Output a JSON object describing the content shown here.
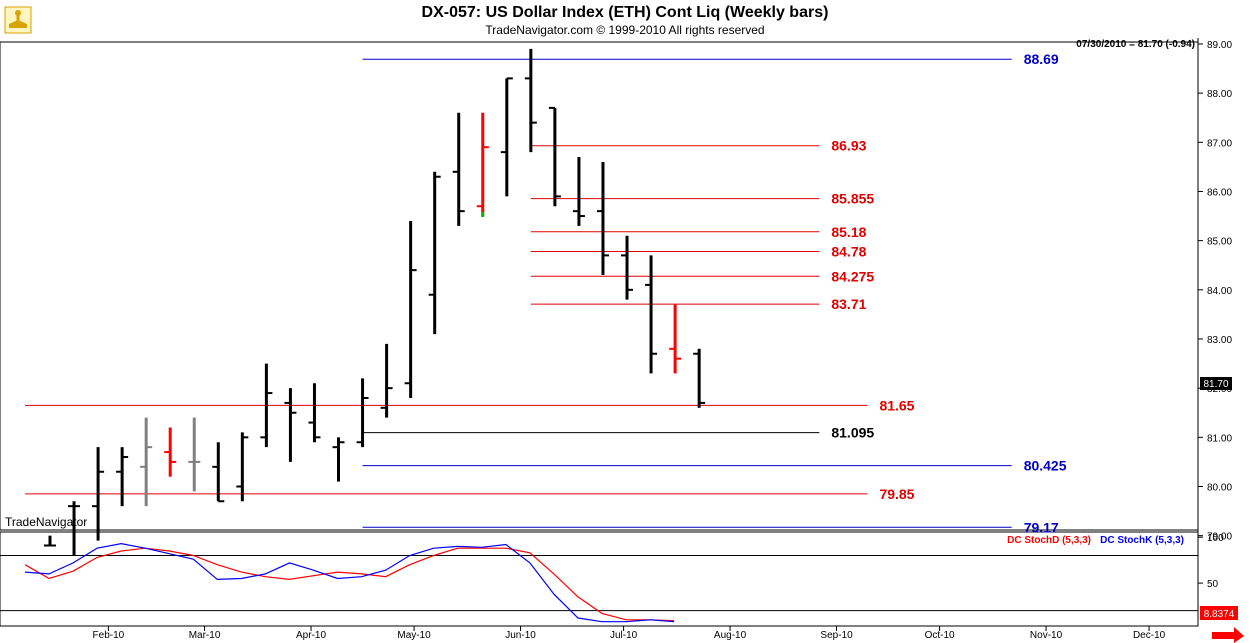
{
  "header": {
    "title": "DX-057:  US Dollar Index (ETH) Cont Liq  (Weekly bars)",
    "subtitle": "TradeNavigator.com © 1999-2010 All rights reserved",
    "last_quote": "07/30/2010 = 81.70 (-0.94)",
    "watermark": "TradeNavigator"
  },
  "colors": {
    "bar": "#000000",
    "bar_gray": "#808080",
    "bar_red": "#ff0000",
    "level_red": "#e00000",
    "level_blue": "#0000c8",
    "level_black": "#000000",
    "stoch_d": "#ff0000",
    "stoch_k": "#0000ff",
    "logo_gold": "#d9a400"
  },
  "icons": {
    "logo": "trade-navigator-logo-icon",
    "scroll": "scroll-right-arrow-icon"
  },
  "chart_data": [
    {
      "type": "ohlc",
      "interval": "weekly",
      "ylim": [
        78.8,
        89.05
      ],
      "yticks": [
        79.0,
        80.0,
        81.0,
        82.0,
        83.0,
        84.0,
        85.0,
        86.0,
        87.0,
        88.0,
        89.0
      ],
      "last_price_label": "81.70",
      "months": [
        "Feb-10",
        "Mar-10",
        "Apr-10",
        "May-10",
        "Jun-10",
        "Jul-10",
        "Aug-10",
        "Sep-10",
        "Oct-10",
        "Nov-10",
        "Dec-10"
      ],
      "bars": [
        {
          "date": "2010-01-15",
          "open": 78.8,
          "high": 79.0,
          "low": 78.8,
          "close": 78.8,
          "color": "black"
        },
        {
          "date": "2010-01-22",
          "open": 79.6,
          "high": 79.7,
          "low": 78.6,
          "close": 79.6,
          "color": "black"
        },
        {
          "date": "2010-01-29",
          "open": 79.6,
          "high": 80.8,
          "low": 78.9,
          "close": 80.3,
          "color": "black"
        },
        {
          "date": "2010-02-05",
          "open": 80.3,
          "high": 80.8,
          "low": 79.6,
          "close": 80.6,
          "color": "black"
        },
        {
          "date": "2010-02-12",
          "open": 80.4,
          "high": 81.4,
          "low": 79.6,
          "close": 80.8,
          "color": "gray"
        },
        {
          "date": "2010-02-19",
          "open": 80.7,
          "high": 81.2,
          "low": 80.2,
          "close": 80.5,
          "color": "red"
        },
        {
          "date": "2010-02-26",
          "open": 80.5,
          "high": 81.4,
          "low": 79.9,
          "close": 80.5,
          "color": "gray"
        },
        {
          "date": "2010-03-05",
          "open": 80.4,
          "high": 80.9,
          "low": 79.7,
          "close": 79.7,
          "color": "black"
        },
        {
          "date": "2010-03-12",
          "open": 80.0,
          "high": 81.1,
          "low": 79.7,
          "close": 81.0,
          "color": "black"
        },
        {
          "date": "2010-03-19",
          "open": 81.0,
          "high": 82.5,
          "low": 80.8,
          "close": 81.9,
          "color": "black"
        },
        {
          "date": "2010-03-26",
          "open": 81.7,
          "high": 82.0,
          "low": 80.5,
          "close": 81.5,
          "color": "black"
        },
        {
          "date": "2010-04-02",
          "open": 81.3,
          "high": 82.1,
          "low": 80.9,
          "close": 81.0,
          "color": "black"
        },
        {
          "date": "2010-04-09",
          "open": 80.8,
          "high": 81.0,
          "low": 80.1,
          "close": 80.9,
          "color": "black"
        },
        {
          "date": "2010-04-16",
          "open": 80.9,
          "high": 82.2,
          "low": 80.8,
          "close": 81.8,
          "color": "black"
        },
        {
          "date": "2010-04-23",
          "open": 81.6,
          "high": 82.9,
          "low": 81.4,
          "close": 82.0,
          "color": "black"
        },
        {
          "date": "2010-04-30",
          "open": 82.1,
          "high": 85.4,
          "low": 81.8,
          "close": 84.4,
          "color": "black"
        },
        {
          "date": "2010-05-07",
          "open": 83.9,
          "high": 86.4,
          "low": 83.1,
          "close": 86.3,
          "color": "black"
        },
        {
          "date": "2010-05-14",
          "open": 86.4,
          "high": 87.6,
          "low": 85.3,
          "close": 85.6,
          "color": "black"
        },
        {
          "date": "2010-05-21",
          "open": 85.7,
          "high": 87.6,
          "low": 85.5,
          "close": 86.9,
          "color": "red"
        },
        {
          "date": "2010-05-28",
          "open": 86.8,
          "high": 88.3,
          "low": 85.9,
          "close": 88.3,
          "color": "black"
        },
        {
          "date": "2010-06-04",
          "open": 88.3,
          "high": 88.9,
          "low": 86.8,
          "close": 87.4,
          "color": "black"
        },
        {
          "date": "2010-06-11",
          "open": 87.7,
          "high": 87.7,
          "low": 85.7,
          "close": 85.9,
          "color": "black"
        },
        {
          "date": "2010-06-18",
          "open": 85.6,
          "high": 86.7,
          "low": 85.3,
          "close": 85.5,
          "color": "black"
        },
        {
          "date": "2010-06-25",
          "open": 85.6,
          "high": 86.6,
          "low": 84.3,
          "close": 84.7,
          "color": "black"
        },
        {
          "date": "2010-07-02",
          "open": 84.7,
          "high": 85.1,
          "low": 83.8,
          "close": 84.0,
          "color": "black"
        },
        {
          "date": "2010-07-09",
          "open": 84.1,
          "high": 84.7,
          "low": 82.3,
          "close": 82.7,
          "color": "black"
        },
        {
          "date": "2010-07-16",
          "open": 82.8,
          "high": 83.7,
          "low": 82.3,
          "close": 82.6,
          "color": "red"
        },
        {
          "date": "2010-07-23",
          "open": 82.7,
          "high": 82.8,
          "low": 81.6,
          "close": 81.7,
          "color": "black"
        }
      ],
      "levels": [
        {
          "label": "88.69",
          "value": 88.69,
          "color": "blue",
          "start": "2010-04-16",
          "end": "2010-10-22"
        },
        {
          "label": "86.93",
          "value": 86.93,
          "color": "red",
          "start": "2010-06-04",
          "end": "2010-08-27"
        },
        {
          "label": "85.855",
          "value": 85.855,
          "color": "red",
          "start": "2010-06-04",
          "end": "2010-08-27"
        },
        {
          "label": "85.18",
          "value": 85.18,
          "color": "red",
          "start": "2010-06-04",
          "end": "2010-08-27"
        },
        {
          "label": "84.78",
          "value": 84.78,
          "color": "red",
          "start": "2010-06-04",
          "end": "2010-08-27"
        },
        {
          "label": "84.275",
          "value": 84.275,
          "color": "red",
          "start": "2010-06-04",
          "end": "2010-08-27"
        },
        {
          "label": "83.71",
          "value": 83.71,
          "color": "red",
          "start": "2010-06-04",
          "end": "2010-08-27"
        },
        {
          "label": "81.65",
          "value": 81.65,
          "color": "red",
          "start": "2010-01-01",
          "end": "2010-09-10"
        },
        {
          "label": "81.095",
          "value": 81.095,
          "color": "black",
          "start": "2010-04-16",
          "end": "2010-08-27"
        },
        {
          "label": "80.425",
          "value": 80.425,
          "color": "blue",
          "start": "2010-04-16",
          "end": "2010-10-22"
        },
        {
          "label": "79.85",
          "value": 79.85,
          "color": "red",
          "start": "2010-01-01",
          "end": "2010-09-10"
        },
        {
          "label": "79.17",
          "value": 79.17,
          "color": "blue",
          "start": "2010-04-16",
          "end": "2010-10-22"
        }
      ]
    },
    {
      "type": "line",
      "ylim": [
        0,
        110
      ],
      "yticks": [
        50,
        100
      ],
      "guide_lines": [
        80,
        20
      ],
      "last_value_label": "8.8374",
      "series": [
        {
          "name": "DC StochD (5,3,3)",
          "color": "red",
          "values": [
            70,
            55,
            63,
            78,
            85,
            88,
            85,
            80,
            70,
            62,
            57,
            54,
            58,
            62,
            60,
            57,
            70,
            80,
            88,
            88,
            88,
            83,
            60,
            35,
            17,
            10,
            10,
            9
          ]
        },
        {
          "name": "DC StochK (5,3,3)",
          "color": "blue",
          "values": [
            62,
            60,
            72,
            88,
            93,
            88,
            82,
            76,
            54,
            55,
            60,
            72,
            64,
            55,
            57,
            64,
            80,
            88,
            90,
            89,
            92,
            72,
            38,
            12,
            8,
            8,
            10,
            8
          ]
        }
      ]
    }
  ]
}
